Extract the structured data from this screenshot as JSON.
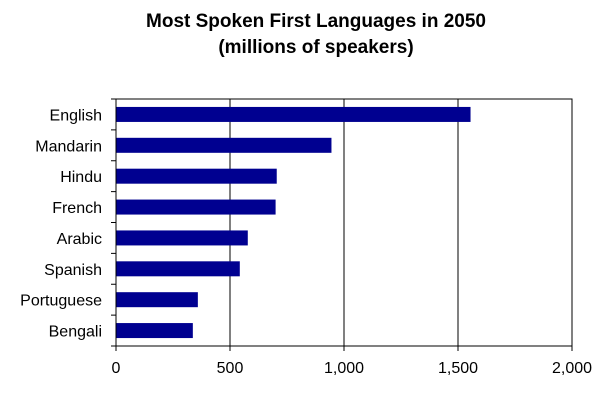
{
  "chart_data": {
    "type": "bar",
    "orientation": "horizontal",
    "title": "Most Spoken First Languages in 2050",
    "subtitle": "(millions of speakers)",
    "categories": [
      "English",
      "Mandarin",
      "Hindu",
      "French",
      "Arabic",
      "Spanish",
      "Portuguese",
      "Bengali"
    ],
    "values": [
      1555,
      945,
      705,
      700,
      578,
      543,
      359,
      337
    ],
    "xlim": [
      0,
      2000
    ],
    "xticks": [
      0,
      500,
      1000,
      1500,
      2000
    ],
    "xtick_labels": [
      "0",
      "500",
      "1,000",
      "1,500",
      "2,000"
    ],
    "xlabel": "",
    "ylabel": "",
    "grid": "vertical",
    "legend": "none",
    "bar_color": "#000090"
  }
}
